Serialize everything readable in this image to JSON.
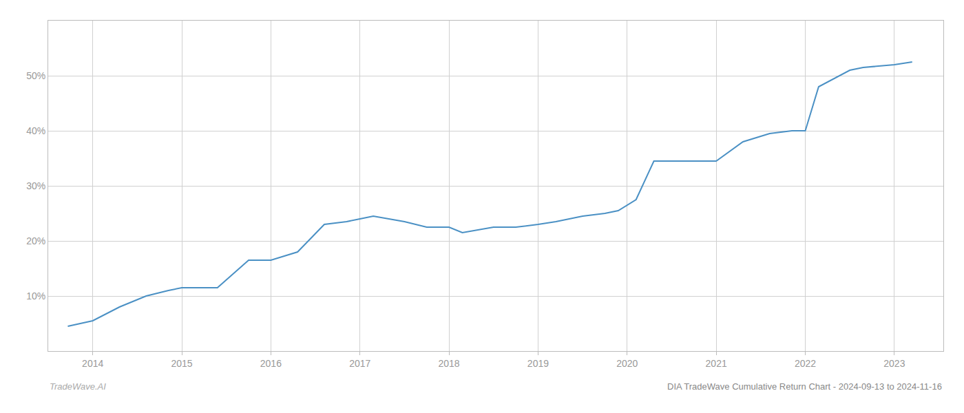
{
  "chart_data": {
    "type": "line",
    "title": "DIA TradeWave Cumulative Return Chart - 2024-09-13 to 2024-11-16",
    "annotations": [
      "TradeWave.AI"
    ],
    "x": [
      2013.72,
      2014.0,
      2014.3,
      2014.6,
      2014.85,
      2015.0,
      2015.4,
      2015.75,
      2016.0,
      2016.3,
      2016.6,
      2016.85,
      2017.0,
      2017.15,
      2017.5,
      2017.75,
      2017.9,
      2018.0,
      2018.15,
      2018.5,
      2018.75,
      2019.0,
      2019.2,
      2019.5,
      2019.75,
      2019.9,
      2020.1,
      2020.3,
      2020.6,
      2020.75,
      2021.0,
      2021.3,
      2021.6,
      2021.85,
      2022.0,
      2022.15,
      2022.5,
      2022.65,
      2023.0,
      2023.2
    ],
    "values": [
      4.5,
      5.5,
      8.0,
      10.0,
      11.0,
      11.5,
      11.5,
      16.5,
      16.5,
      18.0,
      23.0,
      23.5,
      24.0,
      24.5,
      23.5,
      22.5,
      22.5,
      22.5,
      21.5,
      22.5,
      22.5,
      23.0,
      23.5,
      24.5,
      25.0,
      25.5,
      27.5,
      34.5,
      34.5,
      34.5,
      34.5,
      38.0,
      39.5,
      40.0,
      40.0,
      48.0,
      51.0,
      51.5,
      52.0,
      52.5
    ],
    "color": "#4a90c4",
    "xlim": [
      2013.5,
      2023.55
    ],
    "ylim": [
      0,
      60
    ],
    "xticks": [
      2014,
      2015,
      2016,
      2017,
      2018,
      2019,
      2020,
      2021,
      2022,
      2023
    ],
    "yticks": [
      {
        "value": 10,
        "label": "10%"
      },
      {
        "value": 20,
        "label": "20%"
      },
      {
        "value": 30,
        "label": "30%"
      },
      {
        "value": 40,
        "label": "40%"
      },
      {
        "value": 50,
        "label": "50%"
      }
    ],
    "grid": true
  }
}
